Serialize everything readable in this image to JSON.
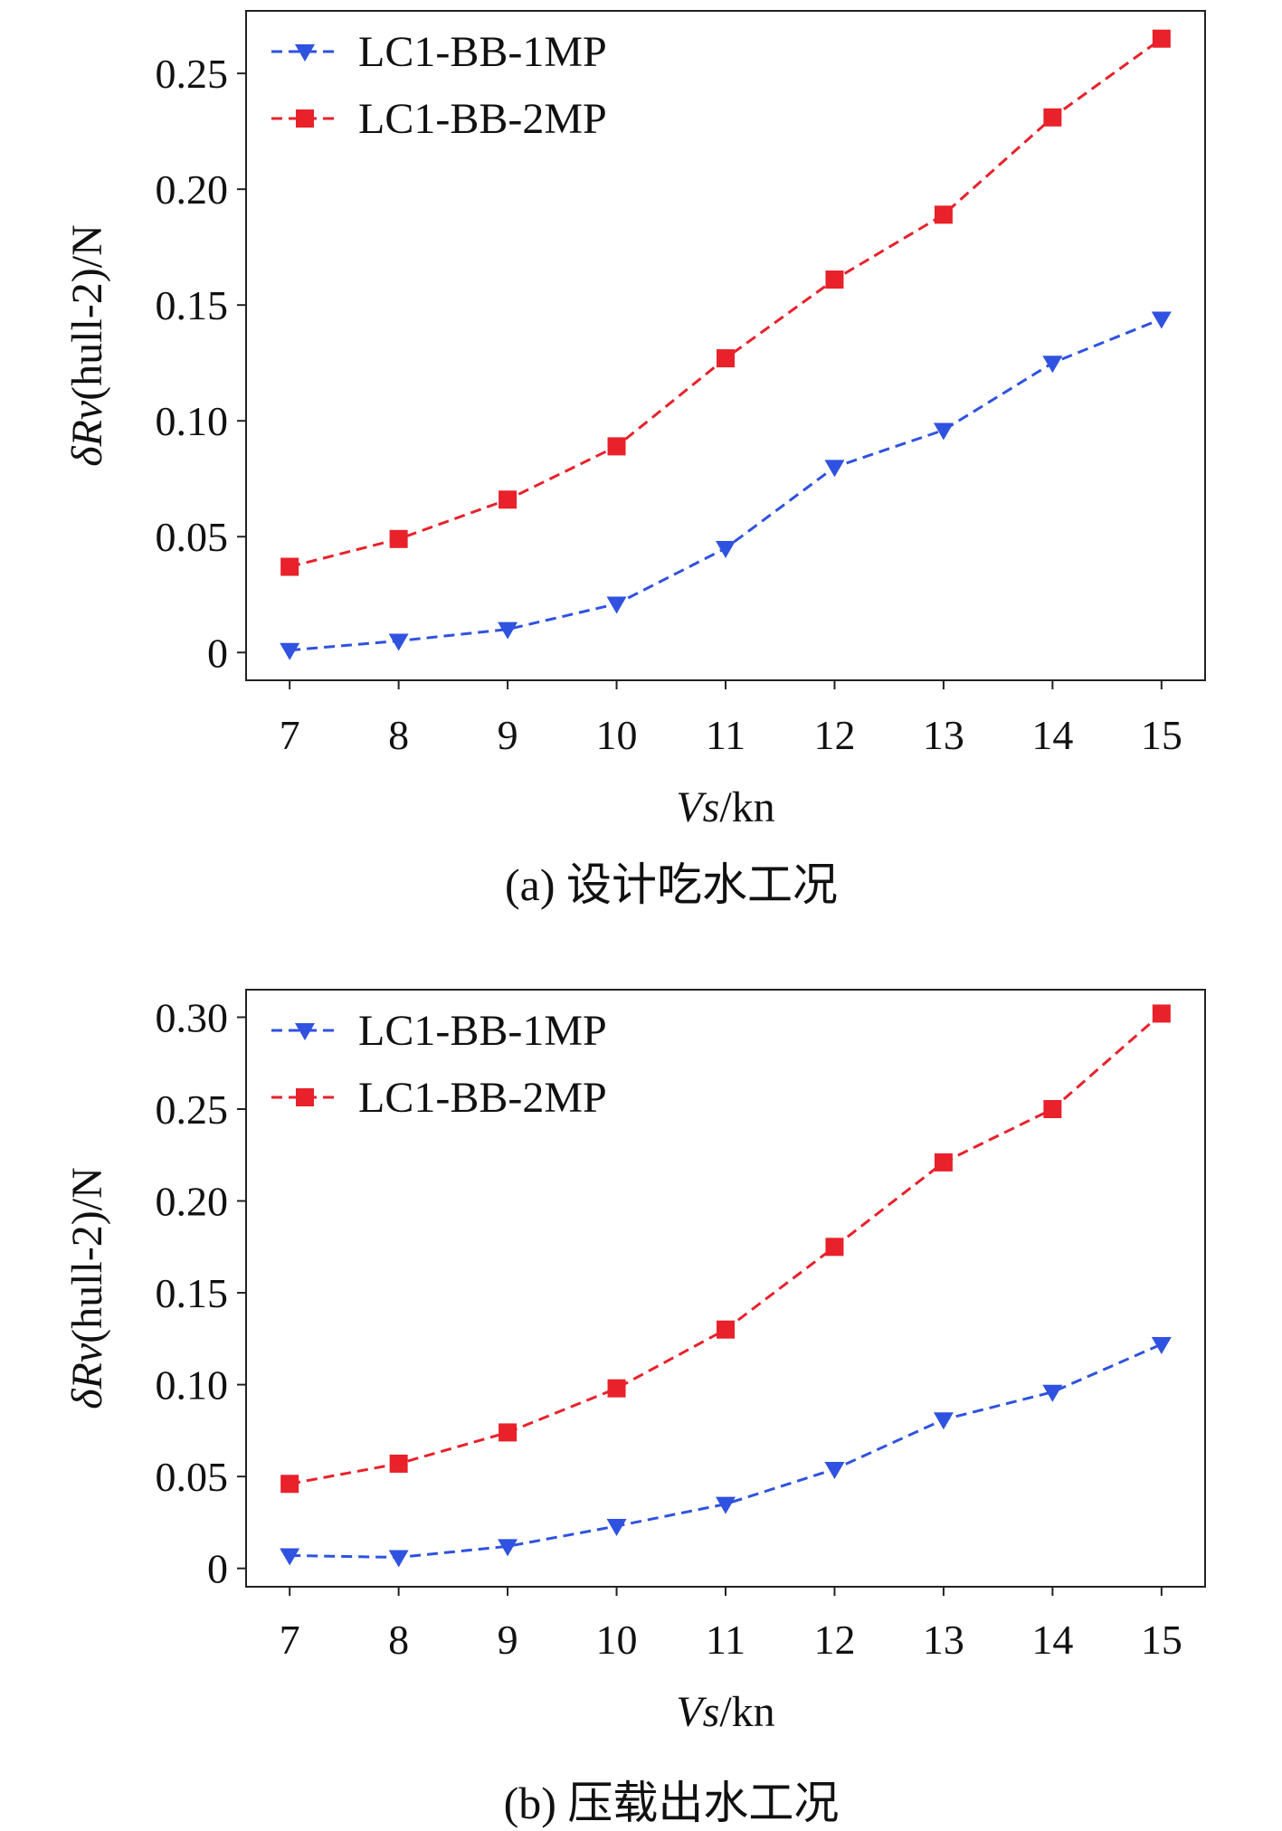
{
  "chart_data": [
    {
      "type": "line",
      "panel": "a",
      "caption": "(a) 设计吃水工况",
      "ylabel_delta": "δ",
      "ylabel_R": "R",
      "ylabel_v": "v",
      "ylabel_rest": "(hull-2)/N",
      "xlabel_italic": "Vs",
      "xlabel_rest": "/kn",
      "x": [
        7,
        8,
        9,
        10,
        11,
        12,
        13,
        14,
        15
      ],
      "xlim": [
        6.6,
        15.4
      ],
      "ylim": [
        -0.012,
        0.277
      ],
      "yticks": [
        0,
        0.05,
        0.1,
        0.15,
        0.2,
        0.25
      ],
      "ytick_labels": [
        "0",
        "0.05",
        "0.10",
        "0.15",
        "0.20",
        "0.25"
      ],
      "xtick_labels": [
        "7",
        "8",
        "9",
        "10",
        "11",
        "12",
        "13",
        "14",
        "15"
      ],
      "legend_position": "top-left",
      "series": [
        {
          "name": "LC1-BB-1MP",
          "color": "#2f52e0",
          "marker": "triangle-down",
          "values": [
            0.001,
            0.005,
            0.01,
            0.021,
            0.045,
            0.08,
            0.096,
            0.125,
            0.144
          ]
        },
        {
          "name": "LC1-BB-2MP",
          "color": "#e8212b",
          "marker": "square",
          "values": [
            0.037,
            0.049,
            0.066,
            0.089,
            0.127,
            0.161,
            0.189,
            0.231,
            0.265
          ]
        }
      ]
    },
    {
      "type": "line",
      "panel": "b",
      "caption": "(b) 压载出水工况",
      "ylabel_delta": "δ",
      "ylabel_R": "R",
      "ylabel_v": "v",
      "ylabel_rest": "(hull-2)/N",
      "xlabel_italic": "Vs",
      "xlabel_rest": "/kn",
      "x": [
        7,
        8,
        9,
        10,
        11,
        12,
        13,
        14,
        15
      ],
      "xlim": [
        6.6,
        15.4
      ],
      "ylim": [
        -0.01,
        0.315
      ],
      "yticks": [
        0,
        0.05,
        0.1,
        0.15,
        0.2,
        0.25,
        0.3
      ],
      "ytick_labels": [
        "0",
        "0.05",
        "0.10",
        "0.15",
        "0.20",
        "0.25",
        "0.30"
      ],
      "xtick_labels": [
        "7",
        "8",
        "9",
        "10",
        "11",
        "12",
        "13",
        "14",
        "15"
      ],
      "legend_position": "top-left",
      "series": [
        {
          "name": "LC1-BB-1MP",
          "color": "#2f52e0",
          "marker": "triangle-down",
          "values": [
            0.007,
            0.006,
            0.012,
            0.023,
            0.035,
            0.054,
            0.081,
            0.096,
            0.122
          ]
        },
        {
          "name": "LC1-BB-2MP",
          "color": "#e8212b",
          "marker": "square",
          "values": [
            0.046,
            0.057,
            0.074,
            0.098,
            0.13,
            0.175,
            0.221,
            0.25,
            0.302
          ]
        }
      ]
    }
  ]
}
